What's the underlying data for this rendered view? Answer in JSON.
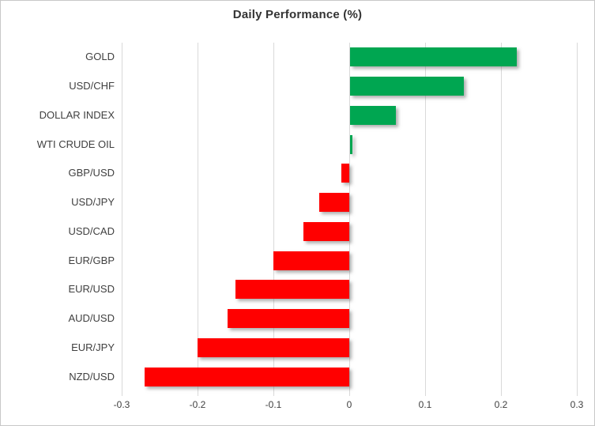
{
  "chart_data": {
    "type": "bar",
    "orientation": "horizontal",
    "title": "Daily Performance (%)",
    "categories": [
      "GOLD",
      "USD/CHF",
      "DOLLAR INDEX",
      "WTI CRUDE OIL",
      "GBP/USD",
      "USD/JPY",
      "USD/CAD",
      "EUR/GBP",
      "EUR/USD",
      "AUD/USD",
      "EUR/JPY",
      "NZD/USD"
    ],
    "values": [
      0.22,
      0.15,
      0.06,
      0.003,
      -0.01,
      -0.04,
      -0.06,
      -0.1,
      -0.15,
      -0.16,
      -0.2,
      -0.27
    ],
    "x_ticks": [
      -0.3,
      -0.2,
      -0.1,
      0,
      0.1,
      0.2,
      0.3
    ],
    "x_tick_labels": [
      "-0.3",
      "-0.2",
      "-0.1",
      "0",
      "0.1",
      "0.2",
      "0.3"
    ],
    "xlim": [
      -0.3,
      0.3
    ],
    "xlabel": "",
    "ylabel": "",
    "legend": "none",
    "grid": "vertical-only",
    "colors": {
      "positive_bar": "#00a651",
      "negative_bar": "#ff0000",
      "gridline": "#d9d9d9",
      "title_text": "#333333",
      "label_text": "#404040",
      "frame_border": "#c8c8c8",
      "background": "#ffffff"
    }
  }
}
